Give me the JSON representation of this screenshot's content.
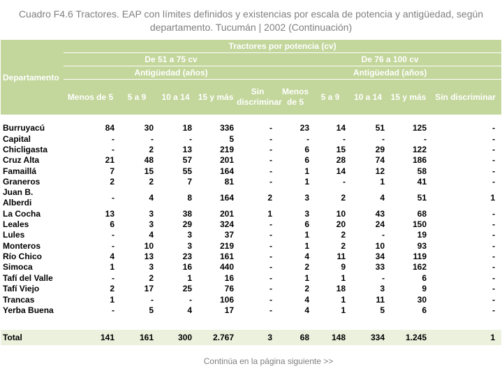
{
  "title": "Cuadro F4.6  Tractores. EAP con límites definidos  y existencias por escala de potencia y antigüedad, según departamento. Tucumán | 2002 (Continuación)",
  "header": {
    "departamento": "Departamento",
    "tractores_por_potencia": "Tractores por potencia (cv)",
    "group1": "De 51 a 75 cv",
    "group2": "De 76 a 100 cv",
    "antiguedad": "Antigüedad (años)",
    "columns": [
      "Menos de 5",
      "5 a 9",
      "10 a 14",
      "15 y más",
      "Sin discriminar",
      "Menos de 5",
      "5 a 9",
      "10 a 14",
      "15 y más",
      "Sin discriminar"
    ]
  },
  "rows": [
    {
      "name": "Burruyacú",
      "v": [
        "84",
        "30",
        "18",
        "336",
        "-",
        "23",
        "14",
        "51",
        "125",
        "-"
      ]
    },
    {
      "name": "Capital",
      "v": [
        "-",
        "-",
        "-",
        "5",
        "-",
        "-",
        "-",
        "-",
        "-",
        "-"
      ]
    },
    {
      "name": "Chicligasta",
      "v": [
        "-",
        "2",
        "13",
        "219",
        "-",
        "6",
        "15",
        "29",
        "122",
        "-"
      ]
    },
    {
      "name": "Cruz Alta",
      "v": [
        "21",
        "48",
        "57",
        "201",
        "-",
        "6",
        "28",
        "74",
        "186",
        "-"
      ]
    },
    {
      "name": "Famaillá",
      "v": [
        "7",
        "15",
        "55",
        "164",
        "-",
        "1",
        "14",
        "12",
        "58",
        "-"
      ]
    },
    {
      "name": "Graneros",
      "v": [
        "2",
        "2",
        "7",
        "81",
        "-",
        "1",
        "-",
        "1",
        "41",
        "-"
      ]
    },
    {
      "name": "Juan B. Alberdi",
      "v": [
        "-",
        "4",
        "8",
        "164",
        "2",
        "3",
        "2",
        "4",
        "51",
        "1"
      ]
    },
    {
      "name": "La Cocha",
      "v": [
        "13",
        "3",
        "38",
        "201",
        "1",
        "3",
        "10",
        "43",
        "68",
        "-"
      ]
    },
    {
      "name": "Leales",
      "v": [
        "6",
        "3",
        "29",
        "324",
        "-",
        "6",
        "20",
        "24",
        "150",
        "-"
      ]
    },
    {
      "name": "Lules",
      "v": [
        "-",
        "4",
        "3",
        "37",
        "-",
        "1",
        "2",
        "-",
        "19",
        "-"
      ]
    },
    {
      "name": "Monteros",
      "v": [
        "-",
        "10",
        "3",
        "219",
        "-",
        "1",
        "2",
        "10",
        "93",
        "-"
      ]
    },
    {
      "name": "Río Chico",
      "v": [
        "4",
        "13",
        "23",
        "161",
        "-",
        "4",
        "11",
        "34",
        "119",
        "-"
      ]
    },
    {
      "name": "Simoca",
      "v": [
        "1",
        "3",
        "16",
        "440",
        "-",
        "2",
        "9",
        "33",
        "162",
        "-"
      ]
    },
    {
      "name": "Tafí del Valle",
      "v": [
        "-",
        "2",
        "1",
        "16",
        "-",
        "1",
        "1",
        "-",
        "6",
        "-"
      ]
    },
    {
      "name": "Tafí Viejo",
      "v": [
        "2",
        "17",
        "25",
        "76",
        "-",
        "2",
        "18",
        "3",
        "9",
        "-"
      ]
    },
    {
      "name": "Trancas",
      "v": [
        "1",
        "-",
        "-",
        "106",
        "-",
        "4",
        "1",
        "11",
        "30",
        "-"
      ]
    },
    {
      "name": "Yerba Buena",
      "v": [
        "-",
        "5",
        "4",
        "17",
        "-",
        "4",
        "1",
        "5",
        "6",
        "-"
      ]
    }
  ],
  "total": {
    "name": "Total",
    "v": [
      "141",
      "161",
      "300",
      "2.767",
      "3",
      "68",
      "148",
      "334",
      "1.245",
      "1"
    ]
  },
  "footer": "Continúa en la página siguiente >>"
}
